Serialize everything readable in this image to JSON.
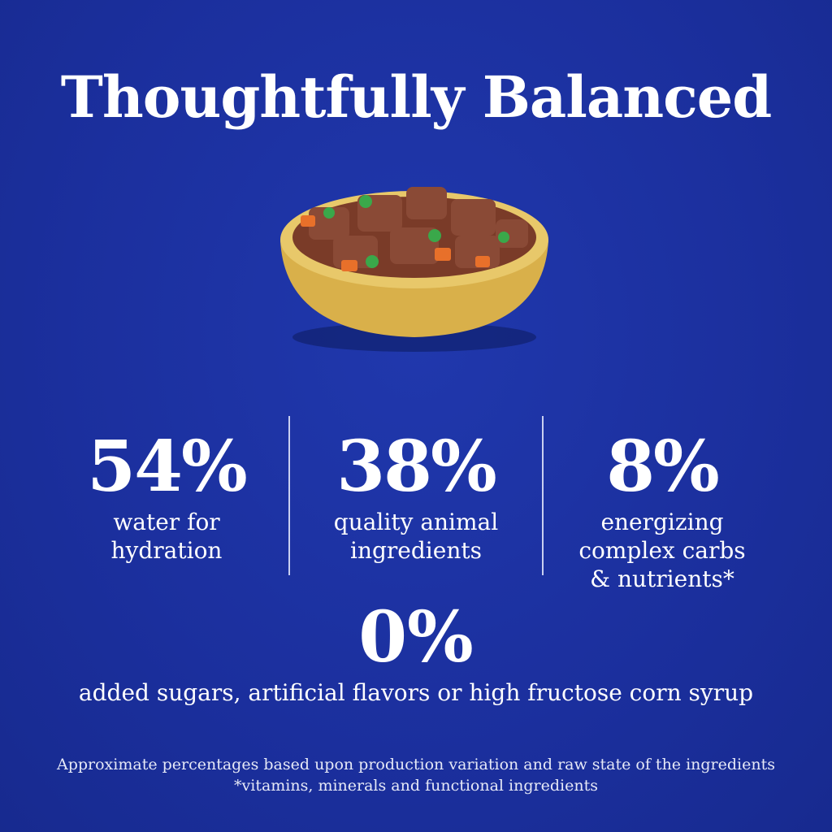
{
  "header": {
    "title": "Thoughtfully Balanced"
  },
  "stats": [
    {
      "value": "54%",
      "lines": [
        "water for",
        "hydration"
      ]
    },
    {
      "value": "38%",
      "lines": [
        "quality animal",
        "ingredients"
      ]
    },
    {
      "value": "8%",
      "lines": [
        "energizing",
        "complex carbs",
        "& nutrients*"
      ]
    }
  ],
  "highlight": {
    "value": "0%",
    "text": "added sugars, artificial flavors or high fructose corn syrup"
  },
  "footnote": [
    "Approximate percentages based upon production variation and raw state of the ingredients",
    "*vitamins, minerals and functional ingredients"
  ]
}
